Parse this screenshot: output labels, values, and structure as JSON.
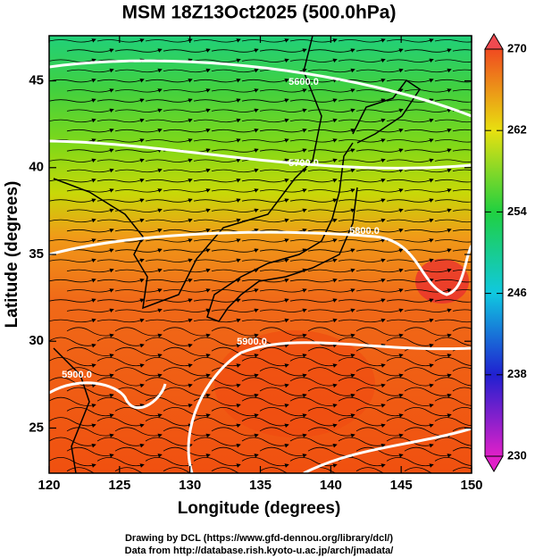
{
  "chart_data": {
    "type": "map",
    "title": "MSM 18Z13Oct2025 (500.0hPa)",
    "x_label": "Longitude (degrees)",
    "y_label": "Latitude  (degrees)",
    "xlim": [
      120,
      150
    ],
    "xticks": [
      120,
      125,
      130,
      135,
      140,
      145,
      150
    ],
    "ylim": [
      22.4,
      47.6
    ],
    "yticks": [
      25,
      30,
      35,
      40,
      45
    ],
    "colorbar": {
      "lim": [
        230,
        270
      ],
      "ticks": [
        230,
        238,
        246,
        254,
        262,
        270
      ]
    },
    "contour_labels": [
      "5600.0",
      "5700.0",
      "5800.0",
      "5900.0",
      "5900.0"
    ]
  },
  "credits": [
    "Drawing by DCL (https://www.gfd-dennou.org/library/dcl/)",
    "Data from http://database.rish.kyoto-u.ac.jp/arch/jmadata/"
  ]
}
